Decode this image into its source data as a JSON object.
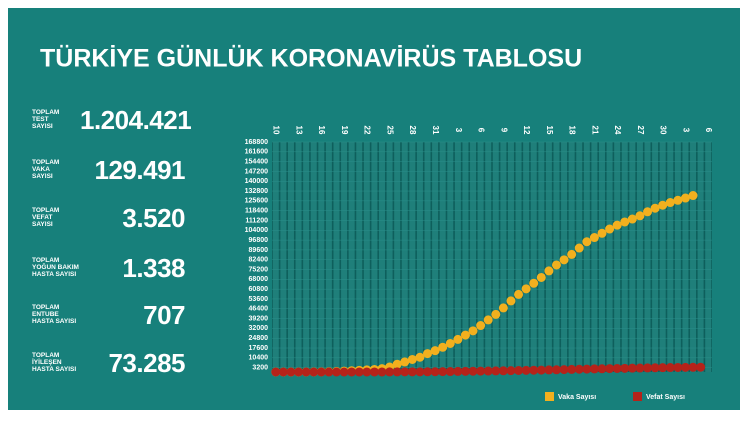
{
  "title": "TÜRKİYE GÜNLÜK KORONAVİRÜS TABLOSU",
  "stats": [
    {
      "label": "TOPLAM\nTEST\nSAYISI",
      "value": "1.204.421"
    },
    {
      "label": "TOPLAM\nVAKA\nSAYISI",
      "value": "129.491"
    },
    {
      "label": "TOPLAM\nVEFAT\nSAYISI",
      "value": "3.520"
    },
    {
      "label": "TOPLAM\nYOĞUN BAKIM\nHASTA SAYISI",
      "value": "1.338"
    },
    {
      "label": "TOPLAM\nENTUBE\nHASTA SAYISI",
      "value": "707"
    },
    {
      "label": "TOPLAM\nİYİLEŞEN\nHASTA SAYISI",
      "value": "73.285"
    }
  ],
  "chart_data": {
    "type": "line",
    "categories": [
      "10",
      null,
      null,
      "13",
      null,
      null,
      "16",
      null,
      null,
      "19",
      null,
      null,
      "22",
      null,
      null,
      "25",
      null,
      null,
      "28",
      null,
      null,
      "31",
      null,
      null,
      "3",
      null,
      null,
      "6",
      null,
      null,
      "9",
      null,
      null,
      "12",
      null,
      null,
      "15",
      null,
      null,
      "18",
      null,
      null,
      "21",
      null,
      null,
      "24",
      null,
      null,
      "27",
      null,
      null,
      "30",
      null,
      null,
      "3",
      null,
      null,
      "6"
    ],
    "series": [
      {
        "name": "Vaka Sayısı",
        "color": "#f2b01e",
        "values": [
          1,
          1,
          5,
          6,
          18,
          47,
          98,
          191,
          359,
          670,
          947,
          1236,
          1529,
          1872,
          2433,
          3629,
          5698,
          7402,
          9217,
          10827,
          13531,
          15679,
          18135,
          20921,
          23934,
          27069,
          30217,
          34109,
          38226,
          42282,
          47029,
          52167,
          56956,
          61049,
          65111,
          69392,
          74193,
          78546,
          82329,
          86306,
          90980,
          95591,
          98674,
          101790,
          104912,
          107773,
          110130,
          112261,
          114653,
          117589,
          120204,
          122392,
          124375,
          126045,
          127659,
          129491,
          null,
          null
        ]
      },
      {
        "name": "Vefat Sayısı",
        "color": "#b5231a",
        "values": [
          0,
          0,
          0,
          0,
          0,
          0,
          0,
          1,
          3,
          4,
          9,
          21,
          30,
          37,
          44,
          59,
          75,
          92,
          108,
          131,
          168,
          214,
          277,
          356,
          425,
          501,
          574,
          649,
          725,
          812,
          908,
          1006,
          1101,
          1198,
          1296,
          1403,
          1518,
          1643,
          1769,
          1890,
          2017,
          2140,
          2259,
          2376,
          2491,
          2600,
          2706,
          2805,
          2900,
          2992,
          3081,
          3174,
          3258,
          3336,
          3397,
          3461,
          3520,
          null
        ]
      }
    ],
    "ylim": [
      0,
      168800
    ],
    "yticks": [
      3200,
      10400,
      17600,
      24800,
      32000,
      39200,
      46400,
      53600,
      60800,
      68000,
      75200,
      82400,
      89600,
      96800,
      104000,
      111200,
      118400,
      125600,
      132800,
      140000,
      147200,
      154400,
      161600,
      168800
    ],
    "grid": true
  }
}
